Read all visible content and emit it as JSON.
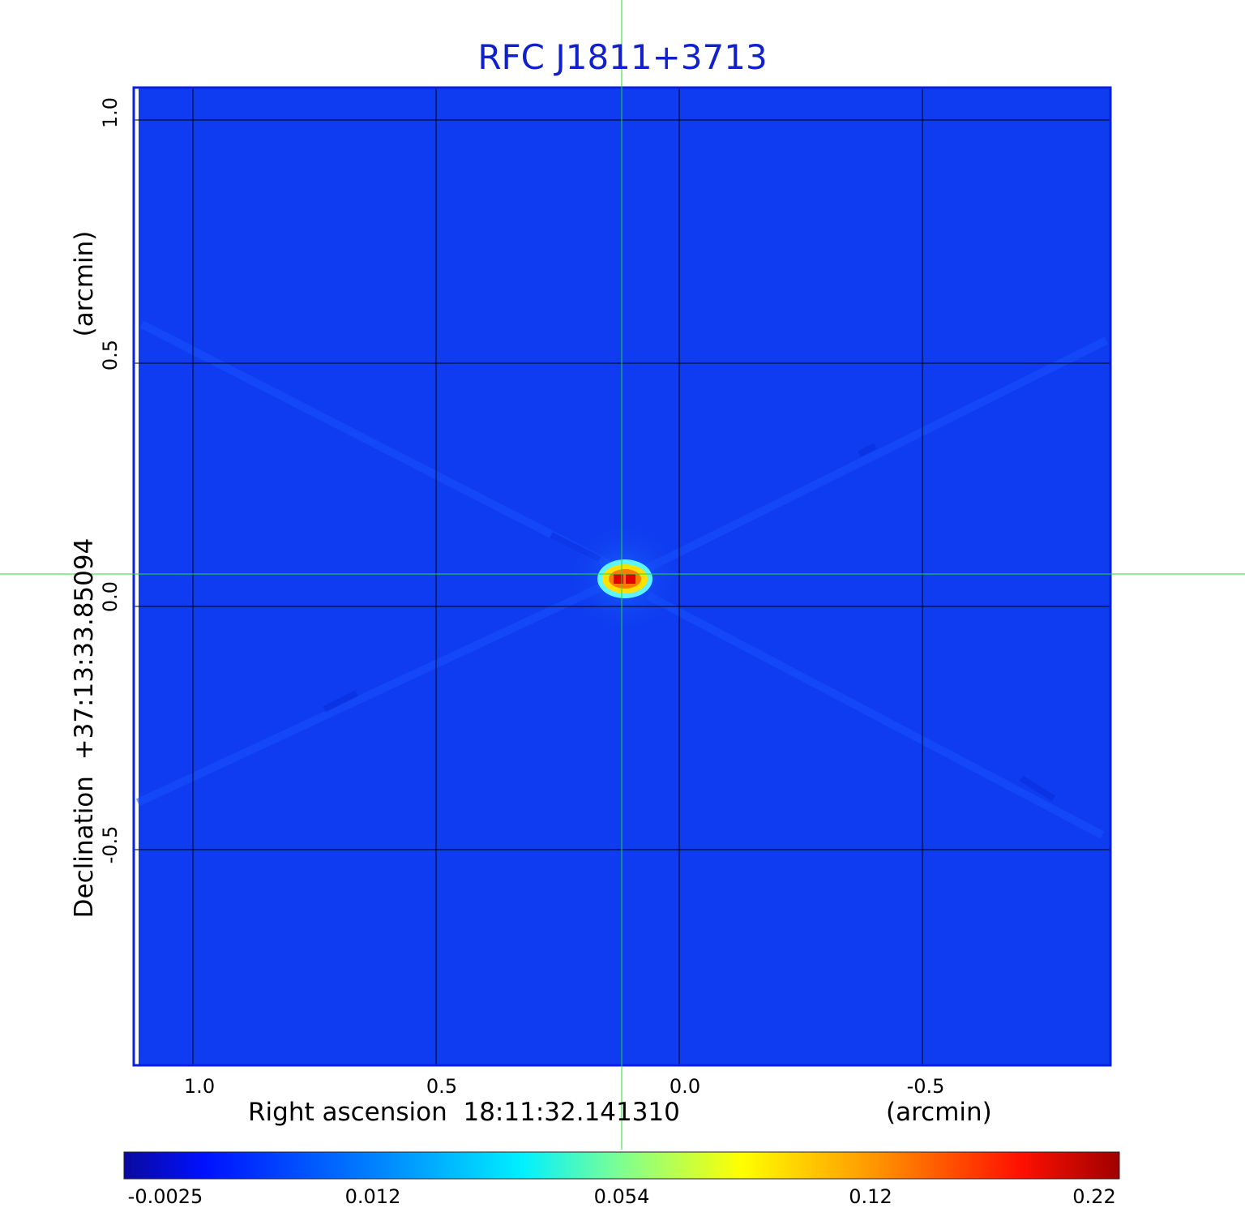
{
  "title": "RFC J1811+3713",
  "x_axis": {
    "label": "Right ascension  18:11:32.141310",
    "unit": "(arcmin)",
    "ticks": [
      "1.0",
      "0.5",
      "0.0",
      "-0.5"
    ]
  },
  "y_axis": {
    "label": "Declination  +37:13:33.85094",
    "unit": "(arcmin)",
    "ticks": [
      "1.0",
      "0.5",
      "0.0",
      "-0.5"
    ]
  },
  "colorbar": {
    "ticks": [
      "-0.0025",
      "0.012",
      "0.054",
      "0.12",
      "0.22"
    ]
  },
  "colors": {
    "background_field": "#0f3cf0",
    "title": "#1020cc",
    "crosshair": "#22dd33"
  }
}
